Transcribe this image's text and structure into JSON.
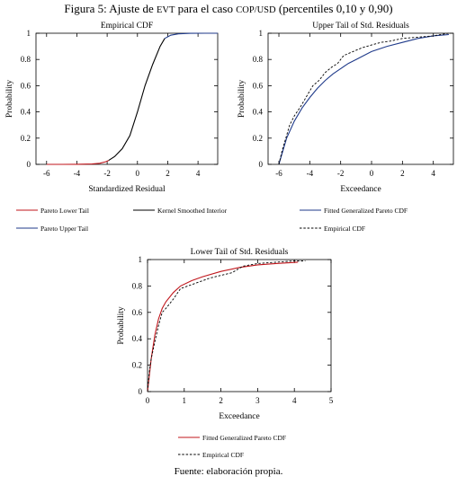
{
  "figure": {
    "title_prefix": "Figura 5: Ajuste de ",
    "title_evt": "EVT",
    "title_mid": " para el caso ",
    "title_pair": "COP/USD",
    "title_suffix": " (percentiles 0,10 y 0,90)",
    "source": "Fuente: elaboración propia."
  },
  "legends": {
    "empirical_cdf": [
      {
        "label": "Pareto Lower Tail",
        "color": "#c0151b",
        "style": "solid"
      },
      {
        "label": "Kernel Smoothed Interior",
        "color": "#000000",
        "style": "solid"
      },
      {
        "label": "Pareto Upper Tail",
        "color": "#1f3a8a",
        "style": "solid"
      }
    ],
    "upper_tail": [
      {
        "label": "Fitted Generalized Pareto CDF",
        "color": "#1f3a8a",
        "style": "solid"
      },
      {
        "label": "Empirical CDF",
        "color": "#000000",
        "style": "dashed"
      }
    ],
    "lower_tail": [
      {
        "label": "Fitted Generalized Pareto CDF",
        "color": "#c0151b",
        "style": "solid"
      },
      {
        "label": "Empirical CDF",
        "color": "#000000",
        "style": "dashed"
      }
    ]
  },
  "chart_data": [
    {
      "id": "empirical_cdf",
      "type": "line",
      "title": "Empirical CDF",
      "xlabel": "Standardized Residual",
      "ylabel": "Probability",
      "xlim": [
        -6.7,
        5.3
      ],
      "ylim": [
        0,
        1
      ],
      "xticks": [
        -6,
        -4,
        -2,
        0,
        2,
        4
      ],
      "yticks": [
        0,
        0.2,
        0.4,
        0.6,
        0.8,
        1
      ],
      "ytick_labels": [
        "0",
        "0.2",
        "0.4",
        "0.6",
        "0.8",
        "1"
      ],
      "series": [
        {
          "name": "Pareto Lower Tail",
          "color": "#c0151b",
          "x": [
            -6.0,
            -5.0,
            -4.0,
            -3.0,
            -2.5,
            -2.1,
            -1.9
          ],
          "y": [
            0.0,
            0.0,
            0.001,
            0.003,
            0.008,
            0.02,
            0.03
          ]
        },
        {
          "name": "Kernel Smoothed Interior",
          "color": "#000000",
          "x": [
            -1.9,
            -1.5,
            -1.0,
            -0.5,
            0.0,
            0.5,
            1.0,
            1.5,
            1.8
          ],
          "y": [
            0.03,
            0.06,
            0.12,
            0.22,
            0.4,
            0.6,
            0.76,
            0.9,
            0.96
          ]
        },
        {
          "name": "Pareto Upper Tail",
          "color": "#1f3a8a",
          "x": [
            1.8,
            2.2,
            2.7,
            3.5,
            4.5,
            5.3
          ],
          "y": [
            0.96,
            0.985,
            0.995,
            0.999,
            1.0,
            1.0
          ]
        }
      ]
    },
    {
      "id": "upper_tail",
      "type": "line",
      "title": "Upper Tail of Std. Residuals",
      "xlabel": "Exceedance",
      "ylabel": "Probability",
      "xlim": [
        -6.7,
        5.3
      ],
      "ylim": [
        0,
        1
      ],
      "xticks": [
        -6,
        -4,
        -2,
        0,
        2,
        4
      ],
      "yticks": [
        0,
        0.2,
        0.4,
        0.6,
        0.8,
        1
      ],
      "ytick_labels": [
        "0",
        "0.2",
        "0.4",
        "0.6",
        "0.8",
        "1"
      ],
      "series": [
        {
          "name": "Fitted Generalized Pareto CDF",
          "color": "#1f3a8a",
          "style": "solid",
          "x": [
            -6.0,
            -5.5,
            -5.0,
            -4.5,
            -4.0,
            -3.5,
            -3.0,
            -2.5,
            -2.0,
            -1.5,
            -1.0,
            0.0,
            1.0,
            2.0,
            3.0,
            4.0,
            5.0
          ],
          "y": [
            0.0,
            0.2,
            0.33,
            0.43,
            0.51,
            0.58,
            0.64,
            0.69,
            0.73,
            0.77,
            0.8,
            0.86,
            0.9,
            0.93,
            0.96,
            0.98,
            0.99
          ]
        },
        {
          "name": "Empirical CDF",
          "color": "#000000",
          "style": "dashed",
          "x": [
            -6.0,
            -5.8,
            -5.5,
            -5.3,
            -5.0,
            -4.6,
            -4.2,
            -3.8,
            -3.4,
            -3.0,
            -2.6,
            -2.2,
            -1.8,
            -1.2,
            -0.6,
            0.0,
            0.6,
            1.2,
            2.0,
            3.0,
            4.0,
            5.0
          ],
          "y": [
            0.0,
            0.1,
            0.22,
            0.3,
            0.37,
            0.44,
            0.52,
            0.6,
            0.64,
            0.7,
            0.74,
            0.77,
            0.83,
            0.86,
            0.89,
            0.91,
            0.93,
            0.94,
            0.96,
            0.97,
            0.98,
            1.0
          ]
        }
      ]
    },
    {
      "id": "lower_tail",
      "type": "line",
      "title": "Lower Tail of Std. Residuals",
      "xlabel": "Exceedance",
      "ylabel": "Probability",
      "xlim": [
        0,
        5
      ],
      "ylim": [
        0,
        1
      ],
      "xticks": [
        0,
        1,
        2,
        3,
        4,
        5
      ],
      "yticks": [
        0,
        0.2,
        0.4,
        0.6,
        0.8,
        1
      ],
      "ytick_labels": [
        "0",
        "0.2",
        "0.4",
        "0.6",
        "0.8",
        "1"
      ],
      "series": [
        {
          "name": "Fitted Generalized Pareto CDF",
          "color": "#c0151b",
          "style": "solid",
          "x": [
            0.0,
            0.1,
            0.2,
            0.3,
            0.4,
            0.5,
            0.7,
            0.9,
            1.2,
            1.5,
            2.0,
            2.5,
            3.0,
            3.5,
            4.1
          ],
          "y": [
            0.0,
            0.25,
            0.43,
            0.55,
            0.63,
            0.68,
            0.75,
            0.8,
            0.84,
            0.87,
            0.91,
            0.94,
            0.96,
            0.97,
            0.98
          ]
        },
        {
          "name": "Empirical CDF",
          "color": "#000000",
          "style": "dashed",
          "x": [
            0.0,
            0.05,
            0.1,
            0.2,
            0.3,
            0.4,
            0.5,
            0.7,
            0.9,
            1.1,
            1.4,
            1.7,
            2.0,
            2.3,
            2.6,
            3.0,
            3.5,
            4.0,
            4.3
          ],
          "y": [
            0.0,
            0.15,
            0.25,
            0.38,
            0.5,
            0.6,
            0.63,
            0.7,
            0.78,
            0.8,
            0.83,
            0.86,
            0.88,
            0.9,
            0.95,
            0.97,
            0.98,
            0.99,
            0.99
          ]
        }
      ]
    }
  ]
}
